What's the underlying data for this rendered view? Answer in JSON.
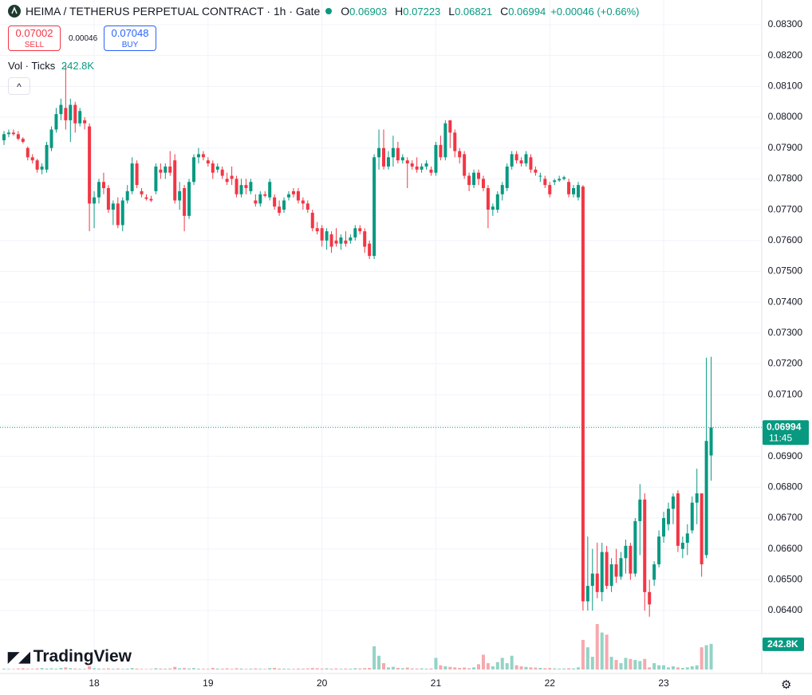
{
  "chart_data": {
    "type": "candlestick",
    "title": "HEIMA / TETHERUS PERPETUAL CONTRACT · 1h · Gate",
    "ohlc_labels": [
      "O",
      "H",
      "L",
      "C"
    ],
    "change": "+0.00046 (+0.66%)",
    "sell": {
      "price": 0.07002,
      "label": "SELL"
    },
    "spread": 0.00046,
    "buy": {
      "price": 0.07048,
      "label": "BUY"
    },
    "volume_title": "Vol · Ticks",
    "volume_last_label": "242.8K",
    "countdown": "11:45",
    "logo": "TradingView",
    "up_color": "#089981",
    "down_color": "#f23645",
    "volume_up_color": "#93d3c6",
    "volume_down_color": "#f5a9ae",
    "grid": true,
    "ylim": [
      0.06196,
      0.0838
    ],
    "yticks": [
      {
        "value": 0.064,
        "label": "0.06400"
      },
      {
        "value": 0.065,
        "label": "0.06500"
      },
      {
        "value": 0.066,
        "label": "0.06600"
      },
      {
        "value": 0.067,
        "label": "0.06700"
      },
      {
        "value": 0.068,
        "label": "0.06800"
      },
      {
        "value": 0.069,
        "label": "0.06900"
      },
      {
        "value": 0.07,
        "label": "0.07000"
      },
      {
        "value": 0.071,
        "label": "0.07100"
      },
      {
        "value": 0.072,
        "label": "0.07200"
      },
      {
        "value": 0.073,
        "label": "0.07300"
      },
      {
        "value": 0.074,
        "label": "0.07400"
      },
      {
        "value": 0.075,
        "label": "0.07500"
      },
      {
        "value": 0.076,
        "label": "0.07600"
      },
      {
        "value": 0.077,
        "label": "0.07700"
      },
      {
        "value": 0.078,
        "label": "0.07800"
      },
      {
        "value": 0.079,
        "label": "0.07900"
      },
      {
        "value": 0.08,
        "label": "0.08000"
      },
      {
        "value": 0.081,
        "label": "0.08100"
      },
      {
        "value": 0.082,
        "label": "0.08200"
      },
      {
        "value": 0.083,
        "label": "0.08300"
      }
    ],
    "categories": [
      null,
      null,
      null,
      null,
      null,
      null,
      null,
      null,
      null,
      null,
      null,
      null,
      null,
      null,
      null,
      null,
      null,
      null,
      null,
      "18",
      null,
      null,
      null,
      null,
      null,
      null,
      null,
      null,
      null,
      null,
      null,
      null,
      null,
      null,
      null,
      null,
      null,
      null,
      null,
      null,
      null,
      null,
      null,
      "19",
      null,
      null,
      null,
      null,
      null,
      null,
      null,
      null,
      null,
      null,
      null,
      null,
      null,
      null,
      null,
      null,
      null,
      null,
      null,
      null,
      null,
      null,
      null,
      "20",
      null,
      null,
      null,
      null,
      null,
      null,
      null,
      null,
      null,
      null,
      null,
      null,
      null,
      null,
      null,
      null,
      null,
      null,
      null,
      null,
      null,
      null,
      null,
      "21",
      null,
      null,
      null,
      null,
      null,
      null,
      null,
      null,
      null,
      null,
      null,
      null,
      null,
      null,
      null,
      null,
      null,
      null,
      null,
      null,
      null,
      null,
      null,
      "22",
      null,
      null,
      null,
      null,
      null,
      null,
      null,
      null,
      null,
      null,
      null,
      null,
      null,
      null,
      null,
      null,
      null,
      null,
      null,
      null,
      null,
      null,
      null,
      "23",
      null,
      null,
      null,
      null,
      null,
      null,
      null,
      null,
      null,
      null
    ],
    "ohlc": [
      [
        0.07925,
        0.07955,
        0.0791,
        0.07945
      ],
      [
        0.07945,
        0.0796,
        0.07935,
        0.0795
      ],
      [
        0.0795,
        0.0796,
        0.0794,
        0.07945
      ],
      [
        0.07945,
        0.07955,
        0.07925,
        0.0793
      ],
      [
        0.0793,
        0.07935,
        0.07915,
        0.0792
      ],
      [
        0.079,
        0.07905,
        0.0786,
        0.0787
      ],
      [
        0.0787,
        0.0788,
        0.0785,
        0.0786
      ],
      [
        0.0786,
        0.07865,
        0.0782,
        0.0783
      ],
      [
        0.0783,
        0.0785,
        0.07815,
        0.0784
      ],
      [
        0.0783,
        0.0792,
        0.0782,
        0.0791
      ],
      [
        0.079,
        0.0797,
        0.0789,
        0.0796
      ],
      [
        0.0796,
        0.0803,
        0.0795,
        0.0801
      ],
      [
        0.0801,
        0.0806,
        0.0799,
        0.0804
      ],
      [
        0.0803,
        0.0817,
        0.0796,
        0.0799
      ],
      [
        0.0799,
        0.0806,
        0.0792,
        0.0804
      ],
      [
        0.0804,
        0.0805,
        0.0795,
        0.0798
      ],
      [
        0.0798,
        0.0803,
        0.0797,
        0.0802
      ],
      [
        0.0799,
        0.08,
        0.0796,
        0.0798
      ],
      [
        0.0797,
        0.0798,
        0.0763,
        0.0772
      ],
      [
        0.0772,
        0.0776,
        0.0764,
        0.0774
      ],
      [
        0.0774,
        0.078,
        0.0772,
        0.0779
      ],
      [
        0.0779,
        0.0782,
        0.0775,
        0.0777
      ],
      [
        0.0777,
        0.0778,
        0.0769,
        0.077
      ],
      [
        0.077,
        0.0773,
        0.0765,
        0.0772
      ],
      [
        0.0772,
        0.0774,
        0.0764,
        0.0765
      ],
      [
        0.0765,
        0.0774,
        0.0763,
        0.0773
      ],
      [
        0.0773,
        0.0778,
        0.0772,
        0.0776
      ],
      [
        0.0776,
        0.0787,
        0.0775,
        0.0785
      ],
      [
        0.0785,
        0.0786,
        0.0777,
        0.0778
      ],
      [
        0.0776,
        0.0777,
        0.0774,
        0.0775
      ],
      [
        0.0774,
        0.0775,
        0.0773,
        0.07735
      ],
      [
        0.07735,
        0.07745,
        0.07725,
        0.0773
      ],
      [
        0.0776,
        0.0785,
        0.0775,
        0.0784
      ],
      [
        0.0783,
        0.0785,
        0.078,
        0.0782
      ],
      [
        0.0782,
        0.0785,
        0.078,
        0.0784
      ],
      [
        0.0784,
        0.0789,
        0.0781,
        0.0782
      ],
      [
        0.0786,
        0.0788,
        0.0772,
        0.0773
      ],
      [
        0.0773,
        0.0779,
        0.077,
        0.0776
      ],
      [
        0.0777,
        0.0778,
        0.0763,
        0.0768
      ],
      [
        0.0768,
        0.078,
        0.0767,
        0.0779
      ],
      [
        0.0779,
        0.0788,
        0.0778,
        0.0787
      ],
      [
        0.0787,
        0.079,
        0.0785,
        0.0788
      ],
      [
        0.0788,
        0.0789,
        0.0786,
        0.0787
      ],
      [
        0.0786,
        0.0787,
        0.0784,
        0.0785
      ],
      [
        0.0785,
        0.0786,
        0.078,
        0.0782
      ],
      [
        0.0783,
        0.0785,
        0.0782,
        0.0784
      ],
      [
        0.0783,
        0.0784,
        0.078,
        0.0781
      ],
      [
        0.078,
        0.0782,
        0.0778,
        0.0779
      ],
      [
        0.0781,
        0.0784,
        0.0778,
        0.078
      ],
      [
        0.078,
        0.0781,
        0.0774,
        0.0775
      ],
      [
        0.0775,
        0.078,
        0.0774,
        0.0778
      ],
      [
        0.0778,
        0.078,
        0.0775,
        0.0777
      ],
      [
        0.0776,
        0.078,
        0.0775,
        0.0779
      ],
      [
        0.0773,
        0.0775,
        0.0771,
        0.0772
      ],
      [
        0.0772,
        0.0776,
        0.0771,
        0.0775
      ],
      [
        0.0775,
        0.0776,
        0.0774,
        0.07745
      ],
      [
        0.0774,
        0.078,
        0.0773,
        0.0779
      ],
      [
        0.0774,
        0.0775,
        0.077,
        0.0771
      ],
      [
        0.0771,
        0.0773,
        0.0768,
        0.0769
      ],
      [
        0.077,
        0.0774,
        0.0769,
        0.0773
      ],
      [
        0.0774,
        0.0776,
        0.0773,
        0.0775
      ],
      [
        0.0776,
        0.0777,
        0.0774,
        0.0775
      ],
      [
        0.0776,
        0.0777,
        0.0772,
        0.0773
      ],
      [
        0.0773,
        0.0774,
        0.077,
        0.0772
      ],
      [
        0.0772,
        0.0773,
        0.0769,
        0.077
      ],
      [
        0.0769,
        0.077,
        0.0763,
        0.0764
      ],
      [
        0.0764,
        0.0766,
        0.0762,
        0.0763
      ],
      [
        0.0764,
        0.0765,
        0.0758,
        0.076
      ],
      [
        0.076,
        0.0764,
        0.0757,
        0.0763
      ],
      [
        0.0762,
        0.0763,
        0.0756,
        0.0758
      ],
      [
        0.076,
        0.0764,
        0.0758,
        0.0759
      ],
      [
        0.0759,
        0.0762,
        0.0757,
        0.0761
      ],
      [
        0.076,
        0.0763,
        0.0758,
        0.0759
      ],
      [
        0.076,
        0.0762,
        0.0759,
        0.0761
      ],
      [
        0.0761,
        0.0765,
        0.076,
        0.0764
      ],
      [
        0.0764,
        0.0765,
        0.0762,
        0.0763
      ],
      [
        0.0763,
        0.0764,
        0.0756,
        0.0758
      ],
      [
        0.0759,
        0.076,
        0.0754,
        0.0755
      ],
      [
        0.0755,
        0.0788,
        0.0754,
        0.0787
      ],
      [
        0.0787,
        0.0796,
        0.0783,
        0.079
      ],
      [
        0.079,
        0.0796,
        0.0783,
        0.0784
      ],
      [
        0.0784,
        0.0789,
        0.0783,
        0.0787
      ],
      [
        0.0787,
        0.0794,
        0.0784,
        0.079
      ],
      [
        0.079,
        0.0792,
        0.0785,
        0.0786
      ],
      [
        0.0786,
        0.0788,
        0.0785,
        0.0787
      ],
      [
        0.0786,
        0.0787,
        0.0777,
        0.0785
      ],
      [
        0.0785,
        0.0786,
        0.0783,
        0.0784
      ],
      [
        0.0784,
        0.0787,
        0.0782,
        0.0783
      ],
      [
        0.0783,
        0.0785,
        0.0782,
        0.0784
      ],
      [
        0.0784,
        0.0786,
        0.0783,
        0.0785
      ],
      [
        0.0783,
        0.0784,
        0.0781,
        0.0782
      ],
      [
        0.0782,
        0.0792,
        0.0781,
        0.0791
      ],
      [
        0.0791,
        0.0794,
        0.0786,
        0.0787
      ],
      [
        0.0787,
        0.0799,
        0.0786,
        0.0798
      ],
      [
        0.0799,
        0.0799,
        0.079,
        0.0795
      ],
      [
        0.0795,
        0.0796,
        0.0787,
        0.0789
      ],
      [
        0.0789,
        0.079,
        0.0785,
        0.0787
      ],
      [
        0.0788,
        0.0789,
        0.078,
        0.0781
      ],
      [
        0.0781,
        0.0782,
        0.0776,
        0.0778
      ],
      [
        0.0778,
        0.0783,
        0.0777,
        0.0782
      ],
      [
        0.0782,
        0.0783,
        0.0778,
        0.078
      ],
      [
        0.078,
        0.0781,
        0.0776,
        0.0777
      ],
      [
        0.0777,
        0.0778,
        0.0764,
        0.077
      ],
      [
        0.077,
        0.0772,
        0.0768,
        0.0771
      ],
      [
        0.077,
        0.0776,
        0.0769,
        0.0775
      ],
      [
        0.0775,
        0.0779,
        0.0773,
        0.0778
      ],
      [
        0.0777,
        0.0785,
        0.0776,
        0.0784
      ],
      [
        0.0784,
        0.0789,
        0.0783,
        0.0788
      ],
      [
        0.0788,
        0.0789,
        0.0785,
        0.0786
      ],
      [
        0.0786,
        0.0787,
        0.0784,
        0.0785
      ],
      [
        0.0785,
        0.0789,
        0.0784,
        0.0788
      ],
      [
        0.0787,
        0.0788,
        0.0782,
        0.0783
      ],
      [
        0.0783,
        0.0784,
        0.0781,
        0.0782
      ],
      [
        0.0781,
        0.0782,
        0.0779,
        0.0781
      ],
      [
        0.078,
        0.0781,
        0.0777,
        0.0778
      ],
      [
        0.0778,
        0.0779,
        0.0774,
        0.0775
      ],
      [
        0.0779,
        0.078,
        0.0778,
        0.07795
      ],
      [
        0.07795,
        0.0781,
        0.0779,
        0.078
      ],
      [
        0.078,
        0.0781,
        0.07795,
        0.07805
      ],
      [
        0.0779,
        0.078,
        0.0774,
        0.0775
      ],
      [
        0.0775,
        0.0778,
        0.0774,
        0.0777
      ],
      [
        0.0774,
        0.0779,
        0.0773,
        0.0778
      ],
      [
        0.07775,
        0.0778,
        0.064,
        0.0643
      ],
      [
        0.0643,
        0.0664,
        0.064,
        0.0648
      ],
      [
        0.0648,
        0.066,
        0.064,
        0.0652
      ],
      [
        0.0652,
        0.0662,
        0.0644,
        0.0646
      ],
      [
        0.0646,
        0.0662,
        0.0643,
        0.0659
      ],
      [
        0.0659,
        0.0661,
        0.0647,
        0.0648
      ],
      [
        0.0648,
        0.0657,
        0.0646,
        0.0655
      ],
      [
        0.0655,
        0.066,
        0.0649,
        0.0651
      ],
      [
        0.0651,
        0.0659,
        0.065,
        0.0657
      ],
      [
        0.0657,
        0.0663,
        0.0652,
        0.0661
      ],
      [
        0.0661,
        0.0662,
        0.065,
        0.0652
      ],
      [
        0.0652,
        0.067,
        0.0651,
        0.0669
      ],
      [
        0.0669,
        0.0681,
        0.0658,
        0.0676
      ],
      [
        0.0676,
        0.0678,
        0.064,
        0.0646
      ],
      [
        0.0646,
        0.065,
        0.0638,
        0.0642
      ],
      [
        0.065,
        0.0656,
        0.0648,
        0.0655
      ],
      [
        0.0655,
        0.0666,
        0.0654,
        0.0664
      ],
      [
        0.0664,
        0.0672,
        0.0662,
        0.067
      ],
      [
        0.0668,
        0.0675,
        0.0666,
        0.0673
      ],
      [
        0.0673,
        0.0678,
        0.0668,
        0.0677
      ],
      [
        0.0678,
        0.0679,
        0.0659,
        0.0661
      ],
      [
        0.066,
        0.0664,
        0.0657,
        0.0662
      ],
      [
        0.0662,
        0.0668,
        0.0658,
        0.0665
      ],
      [
        0.0666,
        0.0677,
        0.0665,
        0.0675
      ],
      [
        0.0675,
        0.0686,
        0.0668,
        0.0678
      ],
      [
        0.0678,
        0.0678,
        0.0651,
        0.0655
      ],
      [
        0.0658,
        0.0722,
        0.0657,
        0.0695
      ],
      [
        0.06903,
        0.07223,
        0.06821,
        0.06994
      ]
    ],
    "volume": [
      8000,
      6000,
      5000,
      9000,
      12000,
      7000,
      6000,
      10000,
      14000,
      9000,
      11000,
      8000,
      15000,
      20000,
      13000,
      9000,
      7000,
      6000,
      30000,
      12000,
      9000,
      8000,
      11000,
      7000,
      10000,
      6000,
      8000,
      14000,
      9000,
      6000,
      5000,
      6000,
      12000,
      9000,
      8000,
      10000,
      25000,
      11000,
      14000,
      9000,
      13000,
      8000,
      7000,
      6000,
      15000,
      9000,
      8000,
      11000,
      7000,
      12000,
      9000,
      6000,
      8000,
      10000,
      7000,
      6000,
      13000,
      15000,
      9000,
      8000,
      7000,
      6000,
      9000,
      8000,
      10000,
      14000,
      12000,
      9000,
      11000,
      8000,
      10000,
      7000,
      9000,
      8000,
      12000,
      10000,
      13000,
      15000,
      220000,
      130000,
      60000,
      20000,
      25000,
      15000,
      12000,
      18000,
      10000,
      9000,
      11000,
      8000,
      10000,
      110000,
      40000,
      30000,
      25000,
      20000,
      15000,
      18000,
      12000,
      20000,
      50000,
      140000,
      60000,
      30000,
      70000,
      110000,
      60000,
      130000,
      40000,
      30000,
      25000,
      20000,
      18000,
      15000,
      12000,
      14000,
      10000,
      8000,
      9000,
      12000,
      10000,
      20000,
      280000,
      210000,
      120000,
      430000,
      350000,
      330000,
      120000,
      90000,
      60000,
      110000,
      100000,
      90000,
      80000,
      100000,
      20000,
      60000,
      40000,
      40000,
      20000,
      30000,
      20000,
      15000,
      20000,
      30000,
      40000,
      210000,
      230000,
      242800
    ]
  }
}
